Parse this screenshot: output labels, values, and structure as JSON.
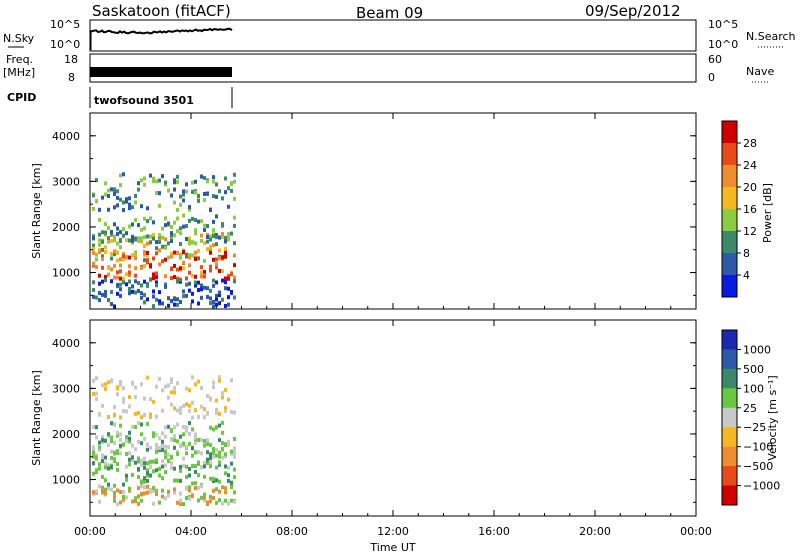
{
  "header": {
    "site": "Saskatoon (fitACF)",
    "beam": "Beam 09",
    "date": "09/Sep/2012"
  },
  "small_panels": {
    "nsky_label": "N.Sky",
    "nsky_ticks": [
      "10^5",
      "10^0"
    ],
    "nsky_right_ticks": [
      "10^5",
      "10^0"
    ],
    "nsearch_label": "N.Search",
    "freq_label": "Freq.",
    "freq_unit": "[MHz]",
    "freq_ticks": [
      "18",
      "8"
    ],
    "nave_ticks": [
      "60",
      "0"
    ],
    "nave_label": "Nave",
    "cpid_label": "CPID",
    "cpid_value": "twofsound 3501"
  },
  "chart_data": [
    {
      "type": "heatmap",
      "name": "power",
      "ylabel": "Slant Range [km]",
      "yticks": [
        "4000",
        "3000",
        "2000",
        "1000"
      ],
      "ylim": [
        200,
        4500
      ],
      "xlim_hours": [
        0,
        24
      ],
      "data_end_hours": 5.67,
      "colorbar_label": "Power [dB]",
      "colorbar_ticks": [
        "28",
        "24",
        "20",
        "16",
        "12",
        "8",
        "4"
      ],
      "colorbar_colors": [
        "#d00000",
        "#e84a1a",
        "#f08c30",
        "#f5b820",
        "#8ccc40",
        "#3a8a6a",
        "#2a5aa8",
        "#0a1adf"
      ]
    },
    {
      "type": "heatmap",
      "name": "velocity",
      "ylabel": "Slant Range [km]",
      "yticks": [
        "4000",
        "3000",
        "2000",
        "1000"
      ],
      "ylim": [
        200,
        4500
      ],
      "xlim_hours": [
        0,
        24
      ],
      "data_end_hours": 5.67,
      "colorbar_label": "Velocity [m s⁻¹]",
      "colorbar_ticks": [
        "1000",
        "500",
        "100",
        "25",
        "−25",
        "−100",
        "−500",
        "−1000"
      ],
      "colorbar_colors": [
        "#1a2ab0",
        "#2a5aa8",
        "#3a8a6a",
        "#6ac840",
        "#c8c8c8",
        "#f5b820",
        "#f08c30",
        "#e84a1a",
        "#d00000"
      ]
    }
  ],
  "x_axis": {
    "ticks": [
      "00:00",
      "04:00",
      "08:00",
      "12:00",
      "16:00",
      "20:00",
      "00:00"
    ],
    "label": "Time UT"
  }
}
